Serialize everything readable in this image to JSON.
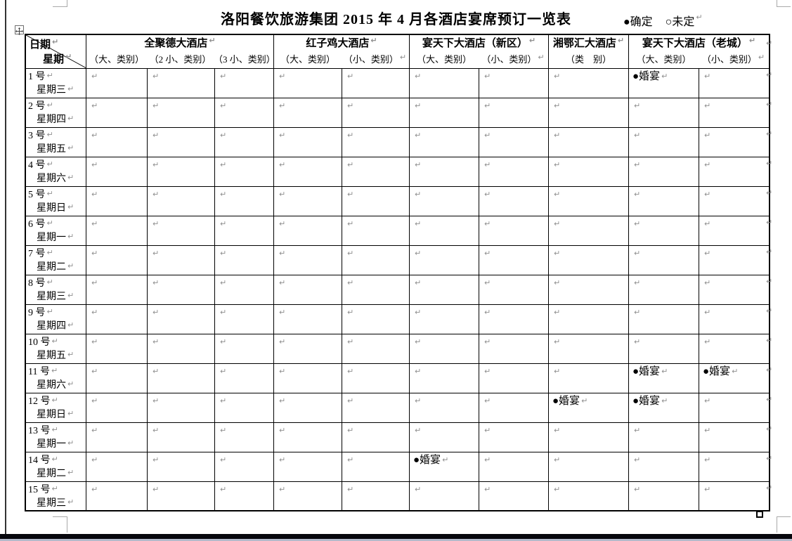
{
  "page": {
    "title": "洛阳餐饮旅游集团 2015 年 4 月各酒店宴席预订一览表",
    "legend": {
      "confirmed": "●确定",
      "undecided": "○未定"
    },
    "pilcrow": "↵"
  },
  "table": {
    "corner": {
      "top_label": "日期",
      "bottom_label": "星期"
    },
    "hotels": [
      {
        "name": "全聚德大酒店",
        "columns": [
          "（大、类别）",
          "（2 小、类别）",
          "（3 小、类别）"
        ]
      },
      {
        "name": "红子鸡大酒店",
        "columns": [
          "（大、类别）",
          "（小、类别）"
        ]
      },
      {
        "name": "宴天下大酒店（新区）",
        "columns": [
          "（大、类别）",
          "（小、类别）"
        ]
      },
      {
        "name": "湘鄂汇大酒店",
        "columns": [
          "（类　别）"
        ]
      },
      {
        "name": "宴天下大酒店（老城）",
        "columns": [
          "（大、类别）",
          "（小、类别）"
        ]
      }
    ],
    "rows": [
      {
        "day": "1 号",
        "weekday": "星期三",
        "cells": [
          "",
          "",
          "",
          "",
          "",
          "",
          "",
          "",
          "●婚宴",
          ""
        ]
      },
      {
        "day": "2 号",
        "weekday": "星期四",
        "cells": [
          "",
          "",
          "",
          "",
          "",
          "",
          "",
          "",
          "",
          ""
        ]
      },
      {
        "day": "3 号",
        "weekday": "星期五",
        "cells": [
          "",
          "",
          "",
          "",
          "",
          "",
          "",
          "",
          "",
          ""
        ]
      },
      {
        "day": "4 号",
        "weekday": "星期六",
        "cells": [
          "",
          "",
          "",
          "",
          "",
          "",
          "",
          "",
          "",
          ""
        ]
      },
      {
        "day": "5 号",
        "weekday": "星期日",
        "cells": [
          "",
          "",
          "",
          "",
          "",
          "",
          "",
          "",
          "",
          ""
        ]
      },
      {
        "day": "6 号",
        "weekday": "星期一",
        "cells": [
          "",
          "",
          "",
          "",
          "",
          "",
          "",
          "",
          "",
          ""
        ]
      },
      {
        "day": "7 号",
        "weekday": "星期二",
        "cells": [
          "",
          "",
          "",
          "",
          "",
          "",
          "",
          "",
          "",
          ""
        ]
      },
      {
        "day": "8 号",
        "weekday": "星期三",
        "cells": [
          "",
          "",
          "",
          "",
          "",
          "",
          "",
          "",
          "",
          ""
        ]
      },
      {
        "day": "9 号",
        "weekday": "星期四",
        "cells": [
          "",
          "",
          "",
          "",
          "",
          "",
          "",
          "",
          "",
          ""
        ]
      },
      {
        "day": "10 号",
        "weekday": "星期五",
        "cells": [
          "",
          "",
          "",
          "",
          "",
          "",
          "",
          "",
          "",
          ""
        ]
      },
      {
        "day": "11 号",
        "weekday": "星期六",
        "cells": [
          "",
          "",
          "",
          "",
          "",
          "",
          "",
          "",
          "●婚宴",
          "●婚宴"
        ]
      },
      {
        "day": "12 号",
        "weekday": "星期日",
        "cells": [
          "",
          "",
          "",
          "",
          "",
          "",
          "",
          "●婚宴",
          "●婚宴",
          ""
        ]
      },
      {
        "day": "13 号",
        "weekday": "星期一",
        "cells": [
          "",
          "",
          "",
          "",
          "",
          "",
          "",
          "",
          "",
          ""
        ]
      },
      {
        "day": "14 号",
        "weekday": "星期二",
        "cells": [
          "",
          "",
          "",
          "",
          "",
          "●婚宴",
          "",
          "",
          "",
          ""
        ]
      },
      {
        "day": "15 号",
        "weekday": "星期三",
        "cells": [
          "",
          "",
          "",
          "",
          "",
          "",
          "",
          "",
          "",
          ""
        ]
      }
    ]
  }
}
